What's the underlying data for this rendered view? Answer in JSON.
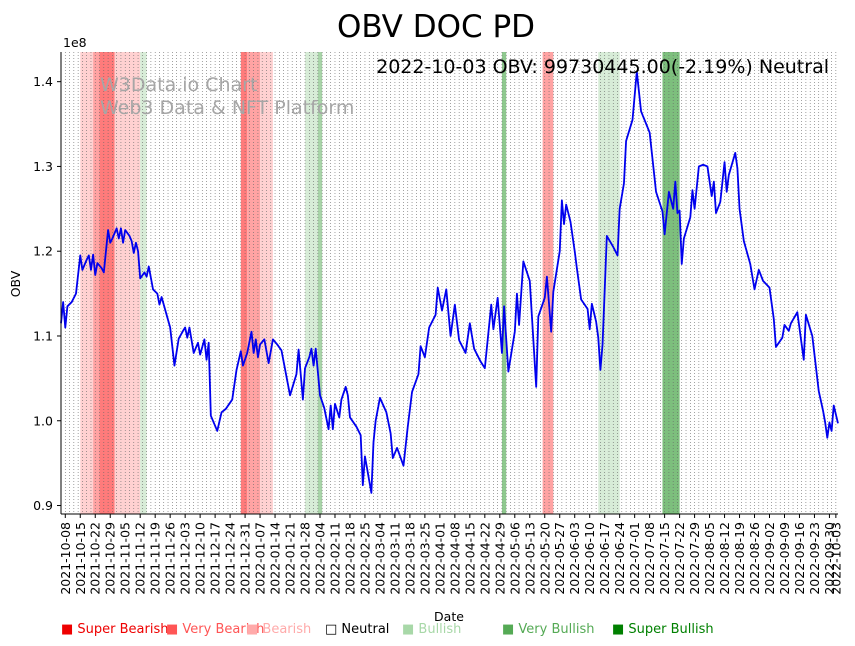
{
  "chart_data": {
    "type": "line",
    "title": "OBV DOC PD",
    "subtitle": "2022-10-03 OBV: 99730445.00(-2.19%) Neutral",
    "watermark": [
      "W3Data.io Chart",
      "Web3 Data & NFT Platform"
    ],
    "xlabel": "Date",
    "ylabel": "OBV",
    "y_multiplier": "1e8",
    "ylim": [
      0.89,
      1.435
    ],
    "y_ticks": [
      0.9,
      1.0,
      1.1,
      1.2,
      1.3,
      1.4
    ],
    "y_tick_labels": [
      "0.9",
      "1.0",
      "1.1",
      "1.2",
      "1.3",
      "1.4"
    ],
    "xlim": [
      "2021-10-06",
      "2022-10-04"
    ],
    "x_tick_labels": [
      "2021-10-08",
      "2021-10-15",
      "2021-10-22",
      "2021-10-29",
      "2021-11-05",
      "2021-11-12",
      "2021-11-19",
      "2021-11-26",
      "2021-12-03",
      "2021-12-10",
      "2021-12-17",
      "2021-12-24",
      "2021-12-31",
      "2022-01-07",
      "2022-01-14",
      "2022-01-21",
      "2022-01-28",
      "2022-02-04",
      "2022-02-11",
      "2022-02-18",
      "2022-02-25",
      "2022-03-04",
      "2022-03-11",
      "2022-03-18",
      "2022-03-25",
      "2022-04-01",
      "2022-04-08",
      "2022-04-15",
      "2022-04-22",
      "2022-04-29",
      "2022-05-06",
      "2022-05-13",
      "2022-05-20",
      "2022-05-27",
      "2022-06-03",
      "2022-06-10",
      "2022-06-17",
      "2022-06-24",
      "2022-07-01",
      "2022-07-08",
      "2022-07-15",
      "2022-07-22",
      "2022-07-29",
      "2022-08-05",
      "2022-08-12",
      "2022-08-19",
      "2022-08-26",
      "2022-09-02",
      "2022-09-09",
      "2022-09-16",
      "2022-09-23",
      "2022-09-30",
      "2022-10-03"
    ],
    "grid": "vertical dotted",
    "line_color": "#0000ee",
    "series": [
      {
        "values": [
          [
            "2021-10-06",
            1.115
          ],
          [
            "2021-10-07",
            1.14
          ],
          [
            "2021-10-08",
            1.11
          ],
          [
            "2021-10-09",
            1.135
          ],
          [
            "2021-10-11",
            1.14
          ],
          [
            "2021-10-13",
            1.15
          ],
          [
            "2021-10-15",
            1.195
          ],
          [
            "2021-10-16",
            1.178
          ],
          [
            "2021-10-18",
            1.19
          ],
          [
            "2021-10-19",
            1.195
          ],
          [
            "2021-10-20",
            1.178
          ],
          [
            "2021-10-21",
            1.196
          ],
          [
            "2021-10-22",
            1.172
          ],
          [
            "2021-10-23",
            1.186
          ],
          [
            "2021-10-25",
            1.18
          ],
          [
            "2021-10-26",
            1.175
          ],
          [
            "2021-10-28",
            1.225
          ],
          [
            "2021-10-29",
            1.21
          ],
          [
            "2021-10-30",
            1.215
          ],
          [
            "2021-11-01",
            1.227
          ],
          [
            "2021-11-02",
            1.215
          ],
          [
            "2021-11-03",
            1.227
          ],
          [
            "2021-11-04",
            1.21
          ],
          [
            "2021-11-05",
            1.225
          ],
          [
            "2021-11-07",
            1.218
          ],
          [
            "2021-11-08",
            1.212
          ],
          [
            "2021-11-09",
            1.198
          ],
          [
            "2021-11-10",
            1.21
          ],
          [
            "2021-11-11",
            1.2
          ],
          [
            "2021-11-12",
            1.168
          ],
          [
            "2021-11-14",
            1.175
          ],
          [
            "2021-11-15",
            1.17
          ],
          [
            "2021-11-16",
            1.182
          ],
          [
            "2021-11-18",
            1.155
          ],
          [
            "2021-11-20",
            1.15
          ],
          [
            "2021-11-21",
            1.137
          ],
          [
            "2021-11-22",
            1.146
          ],
          [
            "2021-11-24",
            1.128
          ],
          [
            "2021-11-26",
            1.11
          ],
          [
            "2021-11-28",
            1.065
          ],
          [
            "2021-11-30",
            1.097
          ],
          [
            "2021-12-02",
            1.106
          ],
          [
            "2021-12-03",
            1.11
          ],
          [
            "2021-12-04",
            1.098
          ],
          [
            "2021-12-05",
            1.11
          ],
          [
            "2021-12-07",
            1.08
          ],
          [
            "2021-12-09",
            1.092
          ],
          [
            "2021-12-10",
            1.078
          ],
          [
            "2021-12-12",
            1.096
          ],
          [
            "2021-12-13",
            1.072
          ],
          [
            "2021-12-14",
            1.092
          ],
          [
            "2021-12-15",
            1.006
          ],
          [
            "2021-12-18",
            0.988
          ],
          [
            "2021-12-20",
            1.01
          ],
          [
            "2021-12-22",
            1.014
          ],
          [
            "2021-12-25",
            1.025
          ],
          [
            "2021-12-27",
            1.06
          ],
          [
            "2021-12-29",
            1.082
          ],
          [
            "2021-12-30",
            1.065
          ],
          [
            "2022-01-01",
            1.08
          ],
          [
            "2022-01-03",
            1.105
          ],
          [
            "2022-01-04",
            1.08
          ],
          [
            "2022-01-05",
            1.096
          ],
          [
            "2022-01-06",
            1.075
          ],
          [
            "2022-01-07",
            1.09
          ],
          [
            "2022-01-09",
            1.096
          ],
          [
            "2022-01-11",
            1.068
          ],
          [
            "2022-01-13",
            1.096
          ],
          [
            "2022-01-15",
            1.09
          ],
          [
            "2022-01-17",
            1.083
          ],
          [
            "2022-01-21",
            1.03
          ],
          [
            "2022-01-24",
            1.055
          ],
          [
            "2022-01-25",
            1.084
          ],
          [
            "2022-01-27",
            1.025
          ],
          [
            "2022-01-28",
            1.062
          ],
          [
            "2022-01-30",
            1.075
          ],
          [
            "2022-01-31",
            1.085
          ],
          [
            "2022-02-01",
            1.065
          ],
          [
            "2022-02-02",
            1.085
          ],
          [
            "2022-02-04",
            1.03
          ],
          [
            "2022-02-06",
            1.015
          ],
          [
            "2022-02-08",
            0.99
          ],
          [
            "2022-02-09",
            1.018
          ],
          [
            "2022-02-10",
            0.99
          ],
          [
            "2022-02-11",
            1.02
          ],
          [
            "2022-02-13",
            1.004
          ],
          [
            "2022-02-14",
            1.025
          ],
          [
            "2022-02-16",
            1.04
          ],
          [
            "2022-02-17",
            1.03
          ],
          [
            "2022-02-18",
            1.004
          ],
          [
            "2022-02-21",
            0.993
          ],
          [
            "2022-02-23",
            0.983
          ],
          [
            "2022-02-24",
            0.924
          ],
          [
            "2022-02-25",
            0.958
          ],
          [
            "2022-02-28",
            0.915
          ],
          [
            "2022-03-01",
            0.975
          ],
          [
            "2022-03-02",
            1.0
          ],
          [
            "2022-03-04",
            1.027
          ],
          [
            "2022-03-07",
            1.01
          ],
          [
            "2022-03-09",
            0.985
          ],
          [
            "2022-03-10",
            0.956
          ],
          [
            "2022-03-12",
            0.968
          ],
          [
            "2022-03-15",
            0.947
          ],
          [
            "2022-03-17",
            0.993
          ],
          [
            "2022-03-19",
            1.034
          ],
          [
            "2022-03-22",
            1.055
          ],
          [
            "2022-03-23",
            1.088
          ],
          [
            "2022-03-25",
            1.075
          ],
          [
            "2022-03-27",
            1.11
          ],
          [
            "2022-03-30",
            1.125
          ],
          [
            "2022-03-31",
            1.157
          ],
          [
            "2022-04-02",
            1.13
          ],
          [
            "2022-04-04",
            1.155
          ],
          [
            "2022-04-06",
            1.1
          ],
          [
            "2022-04-08",
            1.137
          ],
          [
            "2022-04-10",
            1.095
          ],
          [
            "2022-04-13",
            1.08
          ],
          [
            "2022-04-15",
            1.115
          ],
          [
            "2022-04-17",
            1.085
          ],
          [
            "2022-04-20",
            1.07
          ],
          [
            "2022-04-22",
            1.062
          ],
          [
            "2022-04-25",
            1.137
          ],
          [
            "2022-04-26",
            1.108
          ],
          [
            "2022-04-28",
            1.145
          ],
          [
            "2022-04-30",
            1.08
          ],
          [
            "2022-05-01",
            1.135
          ],
          [
            "2022-05-03",
            1.058
          ],
          [
            "2022-05-06",
            1.105
          ],
          [
            "2022-05-07",
            1.15
          ],
          [
            "2022-05-08",
            1.113
          ],
          [
            "2022-05-10",
            1.188
          ],
          [
            "2022-05-13",
            1.165
          ],
          [
            "2022-05-16",
            1.04
          ],
          [
            "2022-05-17",
            1.123
          ],
          [
            "2022-05-20",
            1.145
          ],
          [
            "2022-05-21",
            1.17
          ],
          [
            "2022-05-22",
            1.138
          ],
          [
            "2022-05-23",
            1.105
          ],
          [
            "2022-05-24",
            1.152
          ],
          [
            "2022-05-27",
            1.2
          ],
          [
            "2022-05-28",
            1.26
          ],
          [
            "2022-05-29",
            1.232
          ],
          [
            "2022-05-30",
            1.255
          ],
          [
            "2022-06-01",
            1.235
          ],
          [
            "2022-06-03",
            1.2
          ],
          [
            "2022-06-04",
            1.18
          ],
          [
            "2022-06-06",
            1.143
          ],
          [
            "2022-06-09",
            1.132
          ],
          [
            "2022-06-10",
            1.108
          ],
          [
            "2022-06-11",
            1.138
          ],
          [
            "2022-06-13",
            1.117
          ],
          [
            "2022-06-14",
            1.098
          ],
          [
            "2022-06-15",
            1.06
          ],
          [
            "2022-06-16",
            1.09
          ],
          [
            "2022-06-18",
            1.218
          ],
          [
            "2022-06-21",
            1.205
          ],
          [
            "2022-06-23",
            1.195
          ],
          [
            "2022-06-24",
            1.25
          ],
          [
            "2022-06-26",
            1.28
          ],
          [
            "2022-06-27",
            1.33
          ],
          [
            "2022-06-30",
            1.355
          ],
          [
            "2022-07-02",
            1.412
          ],
          [
            "2022-07-04",
            1.365
          ],
          [
            "2022-07-08",
            1.34
          ],
          [
            "2022-07-11",
            1.27
          ],
          [
            "2022-07-14",
            1.247
          ],
          [
            "2022-07-15",
            1.22
          ],
          [
            "2022-07-17",
            1.27
          ],
          [
            "2022-07-19",
            1.25
          ],
          [
            "2022-07-20",
            1.282
          ],
          [
            "2022-07-21",
            1.245
          ],
          [
            "2022-07-22",
            1.248
          ],
          [
            "2022-07-23",
            1.185
          ],
          [
            "2022-07-24",
            1.215
          ],
          [
            "2022-07-27",
            1.24
          ],
          [
            "2022-07-28",
            1.272
          ],
          [
            "2022-07-29",
            1.25
          ],
          [
            "2022-07-31",
            1.3
          ],
          [
            "2022-08-02",
            1.302
          ],
          [
            "2022-08-04",
            1.3
          ],
          [
            "2022-08-06",
            1.265
          ],
          [
            "2022-08-07",
            1.282
          ],
          [
            "2022-08-08",
            1.245
          ],
          [
            "2022-08-10",
            1.258
          ],
          [
            "2022-08-12",
            1.305
          ],
          [
            "2022-08-13",
            1.27
          ],
          [
            "2022-08-14",
            1.29
          ],
          [
            "2022-08-17",
            1.316
          ],
          [
            "2022-08-18",
            1.298
          ],
          [
            "2022-08-19",
            1.25
          ],
          [
            "2022-08-21",
            1.212
          ],
          [
            "2022-08-24",
            1.185
          ],
          [
            "2022-08-26",
            1.155
          ],
          [
            "2022-08-28",
            1.178
          ],
          [
            "2022-08-30",
            1.165
          ],
          [
            "2022-09-02",
            1.157
          ],
          [
            "2022-09-04",
            1.12
          ],
          [
            "2022-09-05",
            1.087
          ],
          [
            "2022-09-08",
            1.098
          ],
          [
            "2022-09-09",
            1.113
          ],
          [
            "2022-09-11",
            1.106
          ],
          [
            "2022-09-12",
            1.115
          ],
          [
            "2022-09-15",
            1.128
          ],
          [
            "2022-09-18",
            1.072
          ],
          [
            "2022-09-19",
            1.125
          ],
          [
            "2022-09-22",
            1.1
          ],
          [
            "2022-09-25",
            1.035
          ],
          [
            "2022-09-27",
            1.012
          ],
          [
            "2022-09-28",
            0.998
          ],
          [
            "2022-09-29",
            0.98
          ],
          [
            "2022-09-30",
            0.998
          ],
          [
            "2022-10-01",
            0.988
          ],
          [
            "2022-10-02",
            1.018
          ],
          [
            "2022-10-04",
            0.997
          ]
        ]
      }
    ],
    "signal_bands": [
      {
        "start": "2021-10-15",
        "end": "2021-10-21",
        "color": "#ffd1d1"
      },
      {
        "start": "2021-10-21",
        "end": "2021-10-24",
        "color": "#ffa3a3"
      },
      {
        "start": "2021-10-24",
        "end": "2021-10-31",
        "color": "#ff7b7b"
      },
      {
        "start": "2021-10-31",
        "end": "2021-11-07",
        "color": "#ffd1d1"
      },
      {
        "start": "2021-11-07",
        "end": "2021-11-12",
        "color": "#ffd1d1"
      },
      {
        "start": "2021-11-12",
        "end": "2021-11-15",
        "color": "#d7ecd7"
      },
      {
        "start": "2021-12-29",
        "end": "2022-01-01",
        "color": "#ff7b7b"
      },
      {
        "start": "2022-01-01",
        "end": "2022-01-07",
        "color": "#ffa3a3"
      },
      {
        "start": "2022-01-07",
        "end": "2022-01-13",
        "color": "#ffd1d1"
      },
      {
        "start": "2022-01-28",
        "end": "2022-02-03",
        "color": "#d7ecd7"
      },
      {
        "start": "2022-02-03",
        "end": "2022-02-05",
        "color": "#a8d4a8"
      },
      {
        "start": "2022-04-30",
        "end": "2022-05-02",
        "color": "#8fc98f"
      },
      {
        "start": "2022-05-19",
        "end": "2022-05-24",
        "color": "#ffa3a3"
      },
      {
        "start": "2022-06-14",
        "end": "2022-06-18",
        "color": "#d7ecd7"
      },
      {
        "start": "2022-06-18",
        "end": "2022-06-24",
        "color": "#d7ecd7"
      },
      {
        "start": "2022-07-14",
        "end": "2022-07-22",
        "color": "#7dbf7d"
      }
    ]
  },
  "legend": [
    {
      "label": "Super Bearish",
      "color": "#ee0000",
      "marker": "■"
    },
    {
      "label": "Very Bearish",
      "color": "#ff5555",
      "marker": "■"
    },
    {
      "label": "Bearish",
      "color": "#ffaaaa",
      "marker": "■"
    },
    {
      "label": "Neutral",
      "color": "#000000",
      "marker": "□"
    },
    {
      "label": "Bullish",
      "color": "#a8d8a8",
      "marker": "■"
    },
    {
      "label": "Very Bullish",
      "color": "#55aa55",
      "marker": "■"
    },
    {
      "label": "Super Bullish",
      "color": "#008000",
      "marker": "■"
    }
  ]
}
